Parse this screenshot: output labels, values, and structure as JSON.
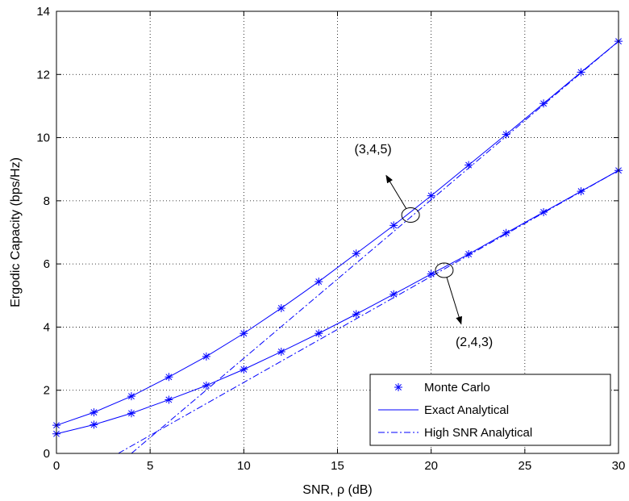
{
  "chart_data": {
    "type": "line",
    "xlabel": "SNR, ρ (dB)",
    "ylabel": "Ergodic Capacity (bps/Hz)",
    "xlim": [
      0,
      30
    ],
    "ylim": [
      0,
      14
    ],
    "xticks": [
      0,
      5,
      10,
      15,
      20,
      25,
      30
    ],
    "yticks": [
      0,
      2,
      4,
      6,
      8,
      10,
      12,
      14
    ],
    "grid": true,
    "legend_position": "bottom-right",
    "line_color": "#0000ff",
    "legend": [
      {
        "label": "Monte Carlo",
        "style": "markers"
      },
      {
        "label": "Exact Analytical",
        "style": "solid"
      },
      {
        "label": "High SNR Analytical",
        "style": "dashdot"
      }
    ],
    "series": [
      {
        "group": "(3,4,5)",
        "x": [
          0,
          2,
          4,
          6,
          8,
          10,
          12,
          14,
          16,
          18,
          20,
          22,
          24,
          26,
          28,
          30
        ],
        "monte_carlo": [
          0.89,
          1.3,
          1.81,
          2.42,
          3.07,
          3.8,
          4.6,
          5.44,
          6.33,
          7.22,
          8.16,
          9.13,
          10.1,
          11.08,
          12.07,
          13.05
        ],
        "exact": [
          0.89,
          1.3,
          1.81,
          2.42,
          3.07,
          3.8,
          4.6,
          5.44,
          6.33,
          7.22,
          8.16,
          9.13,
          10.1,
          11.08,
          12.07,
          13.05
        ],
        "high_snr_x": [
          4,
          30
        ],
        "high_snr": [
          0,
          13.05
        ]
      },
      {
        "group": "(2,4,3)",
        "x": [
          0,
          2,
          4,
          6,
          8,
          10,
          12,
          14,
          16,
          18,
          20,
          22,
          24,
          26,
          28,
          30
        ],
        "monte_carlo": [
          0.62,
          0.91,
          1.27,
          1.7,
          2.15,
          2.66,
          3.22,
          3.8,
          4.41,
          5.04,
          5.68,
          6.31,
          6.98,
          7.64,
          8.3,
          8.96
        ],
        "exact": [
          0.62,
          0.91,
          1.27,
          1.7,
          2.15,
          2.66,
          3.22,
          3.8,
          4.41,
          5.04,
          5.68,
          6.31,
          6.98,
          7.64,
          8.3,
          8.96
        ],
        "high_snr_x": [
          3.3,
          30
        ],
        "high_snr": [
          0,
          8.96
        ]
      }
    ],
    "annotations": [
      {
        "text": "(3,4,5)",
        "x": 18.9,
        "y": 7.55,
        "text_x": 16.9,
        "text_y": 9.5,
        "arrow_to_x": 17.6,
        "arrow_to_y": 8.8
      },
      {
        "text": "(2,4,3)",
        "x": 20.7,
        "y": 5.8,
        "text_x": 22.3,
        "text_y": 3.4,
        "arrow_to_x": 21.6,
        "arrow_to_y": 4.1
      }
    ]
  }
}
